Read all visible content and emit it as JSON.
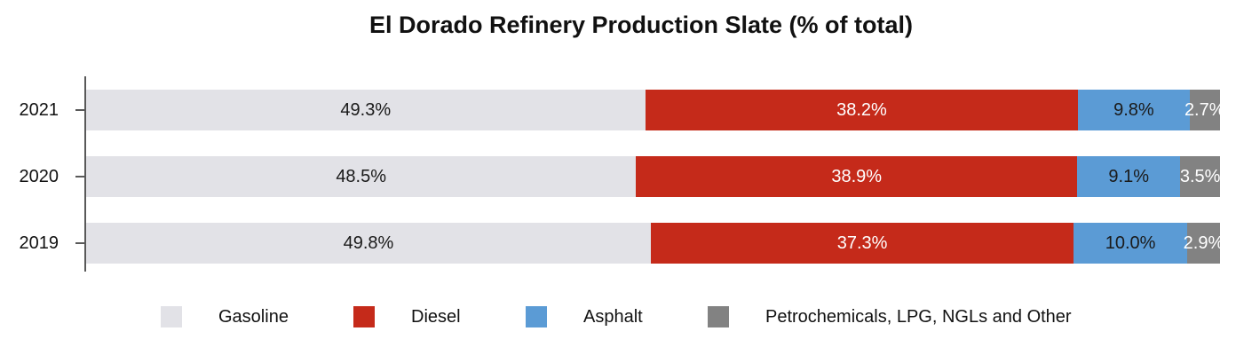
{
  "page": {
    "background": "#ffffff"
  },
  "chart_data": {
    "type": "bar",
    "variant": "horizontal-stacked",
    "title": "El Dorado Refinery Production Slate (% of total)",
    "categories": [
      "2021",
      "2020",
      "2019"
    ],
    "series": [
      {
        "name": "Gasoline",
        "color": "#e2e2e7",
        "label_color": "#1a1a1a",
        "values": [
          49.3,
          48.5,
          49.8
        ],
        "labels": [
          "49.3%",
          "48.5%",
          "49.8%"
        ]
      },
      {
        "name": "Diesel",
        "color": "#c52a1a",
        "label_color": "#ffffff",
        "values": [
          38.2,
          38.9,
          37.3
        ],
        "labels": [
          "38.2%",
          "38.9%",
          "37.3%"
        ]
      },
      {
        "name": "Asphalt",
        "color": "#5b9bd5",
        "label_color": "#1a1a1a",
        "values": [
          9.8,
          9.1,
          10.0
        ],
        "labels": [
          "9.8%",
          "9.1%",
          "10.0%"
        ]
      },
      {
        "name": "Petrochemicals, LPG, NGLs and Other",
        "color": "#828282",
        "label_color": "#ffffff",
        "values": [
          2.7,
          3.5,
          2.9
        ],
        "labels": [
          "2.7%",
          "3.5%",
          "2.9%"
        ]
      }
    ],
    "xlim": [
      0,
      100
    ],
    "grid": false,
    "legend_position": "bottom",
    "axis_color": "#595959",
    "value_suffix": "%"
  }
}
